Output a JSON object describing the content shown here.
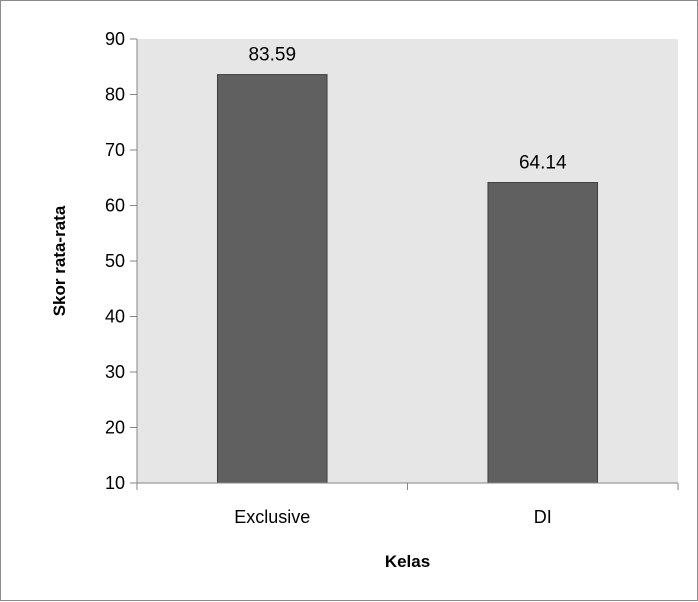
{
  "chart_data": {
    "type": "bar",
    "categories": [
      "Exclusive",
      "DI"
    ],
    "values": [
      83.59,
      64.14
    ],
    "data_labels": [
      "83.59",
      "64.14"
    ],
    "xlabel": "Kelas",
    "ylabel": "Skor rata-rata",
    "ylim": [
      10,
      90
    ],
    "yticks": [
      "10",
      "20",
      "30",
      "40",
      "50",
      "60",
      "70",
      "80",
      "90"
    ],
    "grid": false,
    "legend": "none",
    "colors": {
      "bar": "#606060",
      "bar_border": "#404040",
      "plot_background": "#e6e6e6",
      "axis": "#868686"
    }
  }
}
